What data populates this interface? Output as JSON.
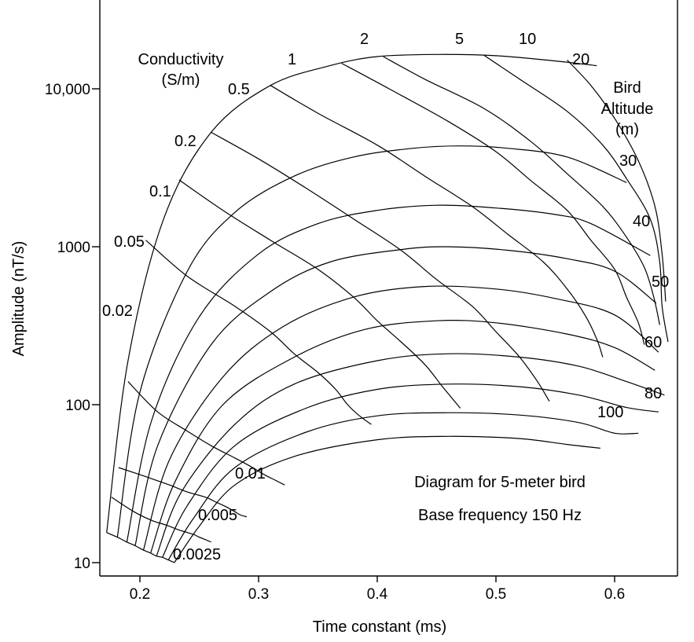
{
  "chart_data": {
    "type": "line",
    "title": "",
    "xlabel": "Time constant (ms)",
    "ylabel": "Amplitude (nT/s)",
    "xlim": [
      0.17,
      0.65
    ],
    "ylim": [
      9,
      35000
    ],
    "yscale": "log",
    "grid": false,
    "legend": "none",
    "x_ticks": [
      {
        "value": 0.2,
        "label": "0.2"
      },
      {
        "value": 0.3,
        "label": "0.3"
      },
      {
        "value": 0.4,
        "label": "0.4"
      },
      {
        "value": 0.5,
        "label": "0.5"
      },
      {
        "value": 0.6,
        "label": "0.6"
      }
    ],
    "y_ticks": [
      {
        "value": 10,
        "label": "10"
      },
      {
        "value": 100,
        "label": "100"
      },
      {
        "value": 1000,
        "label": "1000"
      },
      {
        "value": 10000,
        "label": "10,000"
      }
    ],
    "annotations": {
      "conductivity_title": [
        "Conductivity",
        "(S/m)"
      ],
      "altitude_title": [
        "Bird",
        "Altitude",
        "(m)"
      ],
      "note_lines": [
        "Diagram for 5-meter bird",
        "Base frequency 150 Hz"
      ]
    },
    "altitude_series": [
      {
        "name": "20",
        "points": [
          [
            0.172,
            15.5
          ],
          [
            0.19,
            190
          ],
          [
            0.22,
            1500
          ],
          [
            0.26,
            5300
          ],
          [
            0.31,
            10500
          ],
          [
            0.36,
            14000
          ],
          [
            0.4,
            16000
          ],
          [
            0.45,
            16500
          ],
          [
            0.5,
            16200
          ],
          [
            0.55,
            15000
          ],
          [
            0.585,
            14000
          ]
        ]
      },
      {
        "name": "30",
        "points": [
          [
            0.181,
            14.5
          ],
          [
            0.2,
            120
          ],
          [
            0.24,
            700
          ],
          [
            0.28,
            1650
          ],
          [
            0.33,
            2800
          ],
          [
            0.38,
            3700
          ],
          [
            0.43,
            4200
          ],
          [
            0.47,
            4350
          ],
          [
            0.51,
            4200
          ],
          [
            0.56,
            3700
          ],
          [
            0.61,
            2550
          ]
        ]
      },
      {
        "name": "40",
        "points": [
          [
            0.189,
            13.5
          ],
          [
            0.21,
            80
          ],
          [
            0.25,
            360
          ],
          [
            0.3,
            900
          ],
          [
            0.35,
            1400
          ],
          [
            0.4,
            1700
          ],
          [
            0.45,
            1830
          ],
          [
            0.5,
            1760
          ],
          [
            0.55,
            1600
          ],
          [
            0.58,
            1400
          ],
          [
            0.63,
            880
          ]
        ]
      },
      {
        "name": "50",
        "points": [
          [
            0.196,
            12.8
          ],
          [
            0.215,
            55
          ],
          [
            0.26,
            240
          ],
          [
            0.31,
            520
          ],
          [
            0.36,
            800
          ],
          [
            0.42,
            960
          ],
          [
            0.46,
            1000
          ],
          [
            0.51,
            950
          ],
          [
            0.56,
            840
          ],
          [
            0.6,
            700
          ],
          [
            0.635,
            440
          ]
        ]
      },
      {
        "name": "",
        "points": [
          [
            0.203,
            12.0
          ],
          [
            0.225,
            45
          ],
          [
            0.27,
            150
          ],
          [
            0.32,
            310
          ],
          [
            0.38,
            480
          ],
          [
            0.44,
            560
          ],
          [
            0.5,
            540
          ],
          [
            0.55,
            470
          ],
          [
            0.6,
            370
          ],
          [
            0.637,
            215
          ]
        ]
      },
      {
        "name": "60",
        "points": [
          [
            0.209,
            11.5
          ],
          [
            0.23,
            33
          ],
          [
            0.27,
            100
          ],
          [
            0.33,
            200
          ],
          [
            0.39,
            300
          ],
          [
            0.45,
            340
          ],
          [
            0.5,
            330
          ],
          [
            0.56,
            280
          ],
          [
            0.6,
            230
          ],
          [
            0.634,
            165
          ]
        ]
      },
      {
        "name": "",
        "points": [
          [
            0.214,
            11.0
          ],
          [
            0.235,
            28
          ],
          [
            0.28,
            75
          ],
          [
            0.33,
            135
          ],
          [
            0.4,
            190
          ],
          [
            0.46,
            210
          ],
          [
            0.52,
            200
          ],
          [
            0.57,
            175
          ],
          [
            0.61,
            140
          ],
          [
            0.642,
            115
          ]
        ]
      },
      {
        "name": "80",
        "points": [
          [
            0.219,
            10.8
          ],
          [
            0.24,
            23
          ],
          [
            0.28,
            55
          ],
          [
            0.34,
            95
          ],
          [
            0.4,
            125
          ],
          [
            0.46,
            135
          ],
          [
            0.52,
            130
          ],
          [
            0.57,
            115
          ],
          [
            0.61,
            96
          ],
          [
            0.637,
            90
          ]
        ]
      },
      {
        "name": "",
        "points": [
          [
            0.224,
            10.4
          ],
          [
            0.245,
            19
          ],
          [
            0.28,
            40
          ],
          [
            0.34,
            67
          ],
          [
            0.4,
            85
          ],
          [
            0.46,
            89
          ],
          [
            0.52,
            86
          ],
          [
            0.57,
            77
          ],
          [
            0.6,
            66
          ],
          [
            0.62,
            66
          ]
        ]
      },
      {
        "name": "100",
        "points": [
          [
            0.229,
            10.0
          ],
          [
            0.25,
            17
          ],
          [
            0.28,
            31
          ],
          [
            0.33,
            47
          ],
          [
            0.4,
            60
          ],
          [
            0.46,
            63
          ],
          [
            0.52,
            61
          ],
          [
            0.56,
            56
          ],
          [
            0.588,
            53
          ]
        ]
      }
    ],
    "conductivity_series": [
      {
        "name": "0.0025",
        "points": [
          [
            0.172,
            15.5
          ],
          [
            0.181,
            14.5
          ],
          [
            0.189,
            13.5
          ],
          [
            0.196,
            12.8
          ],
          [
            0.203,
            12.0
          ],
          [
            0.209,
            11.5
          ],
          [
            0.214,
            11.0
          ],
          [
            0.219,
            10.8
          ],
          [
            0.224,
            10.4
          ],
          [
            0.229,
            10.0
          ]
        ]
      },
      {
        "name": "0.005",
        "points": [
          [
            0.176,
            26
          ],
          [
            0.195,
            21
          ],
          [
            0.21,
            18.5
          ],
          [
            0.222,
            17.3
          ],
          [
            0.232,
            16.2
          ],
          [
            0.24,
            15.5
          ],
          [
            0.246,
            15.0
          ],
          [
            0.25,
            14.5
          ],
          [
            0.255,
            14.0
          ],
          [
            0.26,
            13.5
          ]
        ]
      },
      {
        "name": "0.01",
        "points": [
          [
            0.182,
            40
          ],
          [
            0.205,
            35
          ],
          [
            0.225,
            31
          ],
          [
            0.24,
            28
          ],
          [
            0.255,
            26
          ],
          [
            0.265,
            24
          ],
          [
            0.273,
            22.5
          ],
          [
            0.28,
            21
          ],
          [
            0.285,
            20
          ],
          [
            0.29,
            19.5
          ]
        ]
      },
      {
        "name": "0.02",
        "points": [
          [
            0.19,
            140
          ],
          [
            0.215,
            90
          ],
          [
            0.24,
            68
          ],
          [
            0.26,
            55
          ],
          [
            0.28,
            46
          ],
          [
            0.295,
            40
          ],
          [
            0.305,
            36
          ],
          [
            0.315,
            33
          ],
          [
            0.322,
            31
          ]
        ]
      },
      {
        "name": "0.05",
        "points": [
          [
            0.205,
            1100
          ],
          [
            0.24,
            650
          ],
          [
            0.28,
            420
          ],
          [
            0.31,
            290
          ],
          [
            0.33,
            210
          ],
          [
            0.35,
            160
          ],
          [
            0.365,
            125
          ],
          [
            0.375,
            100
          ],
          [
            0.385,
            85
          ],
          [
            0.395,
            75
          ]
        ]
      },
      {
        "name": "0.1",
        "points": [
          [
            0.233,
            2650
          ],
          [
            0.27,
            1700
          ],
          [
            0.31,
            1100
          ],
          [
            0.35,
            720
          ],
          [
            0.38,
            480
          ],
          [
            0.4,
            340
          ],
          [
            0.42,
            250
          ],
          [
            0.44,
            180
          ],
          [
            0.455,
            130
          ],
          [
            0.47,
            95
          ]
        ]
      },
      {
        "name": "0.2",
        "points": [
          [
            0.26,
            5300
          ],
          [
            0.3,
            3600
          ],
          [
            0.34,
            2350
          ],
          [
            0.38,
            1500
          ],
          [
            0.42,
            950
          ],
          [
            0.45,
            620
          ],
          [
            0.48,
            420
          ],
          [
            0.5,
            290
          ],
          [
            0.52,
            200
          ],
          [
            0.535,
            140
          ],
          [
            0.545,
            105
          ]
        ]
      },
      {
        "name": "0.5",
        "points": [
          [
            0.31,
            10500
          ],
          [
            0.35,
            7000
          ],
          [
            0.4,
            4400
          ],
          [
            0.44,
            2800
          ],
          [
            0.48,
            1800
          ],
          [
            0.51,
            1200
          ],
          [
            0.54,
            800
          ],
          [
            0.56,
            540
          ],
          [
            0.575,
            370
          ],
          [
            0.585,
            260
          ],
          [
            0.59,
            200
          ]
        ]
      },
      {
        "name": "1",
        "points": [
          [
            0.37,
            14500
          ],
          [
            0.41,
            10000
          ],
          [
            0.46,
            6200
          ],
          [
            0.5,
            4000
          ],
          [
            0.53,
            2600
          ],
          [
            0.56,
            1700
          ],
          [
            0.58,
            1100
          ],
          [
            0.6,
            720
          ],
          [
            0.61,
            480
          ],
          [
            0.62,
            330
          ],
          [
            0.625,
            240
          ]
        ]
      },
      {
        "name": "2",
        "points": [
          [
            0.405,
            16000
          ],
          [
            0.44,
            11500
          ],
          [
            0.49,
            7500
          ],
          [
            0.53,
            4600
          ],
          [
            0.56,
            2900
          ],
          [
            0.59,
            1800
          ],
          [
            0.61,
            1150
          ],
          [
            0.625,
            740
          ],
          [
            0.633,
            480
          ],
          [
            0.638,
            320
          ]
        ]
      },
      {
        "name": "5",
        "points": [
          [
            0.49,
            16300
          ],
          [
            0.52,
            11500
          ],
          [
            0.56,
            7200
          ],
          [
            0.59,
            4400
          ],
          [
            0.61,
            2700
          ],
          [
            0.63,
            1500
          ],
          [
            0.638,
            800
          ],
          [
            0.64,
            420
          ],
          [
            0.645,
            250
          ]
        ]
      },
      {
        "name": "10",
        "points": [
          [
            0.56,
            15200
          ],
          [
            0.58,
            10500
          ],
          [
            0.6,
            6500
          ],
          [
            0.62,
            3500
          ],
          [
            0.634,
            1800
          ],
          [
            0.64,
            900
          ],
          [
            0.643,
            450
          ]
        ]
      }
    ],
    "conductivity_labels": [
      "Conductivity (S/m)"
    ],
    "conductivity_values": [
      "0.0025",
      "0.005",
      "0.01",
      "0.02",
      "0.05",
      "0.1",
      "0.2",
      "0.5",
      "1",
      "2",
      "5",
      "10",
      "20"
    ],
    "altitude_values": [
      "20",
      "30",
      "40",
      "50",
      "60",
      "80",
      "100"
    ]
  }
}
